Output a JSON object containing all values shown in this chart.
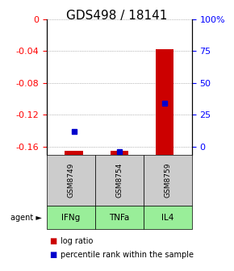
{
  "title": "GDS498 / 18141",
  "samples": [
    "GSM8749",
    "GSM8754",
    "GSM8759"
  ],
  "agents": [
    "IFNg",
    "TNFa",
    "IL4"
  ],
  "log_ratios": [
    -0.165,
    -0.165,
    -0.038
  ],
  "percentile_ranks": [
    17,
    2,
    38
  ],
  "ylim": [
    -0.17,
    0.0
  ],
  "y_ticks_left": [
    0,
    -0.04,
    -0.08,
    -0.12,
    -0.16
  ],
  "y_ticks_right_labels": [
    "100%",
    "75",
    "50",
    "25",
    "0"
  ],
  "y_ticks_right_vals": [
    0,
    -0.04,
    -0.08,
    -0.12,
    -0.16
  ],
  "bar_color": "#cc0000",
  "blue_color": "#0000cc",
  "agent_bg_color": "#99ee99",
  "sample_bg_color": "#cccccc",
  "bar_width": 0.4,
  "title_fontsize": 11,
  "tick_fontsize": 8,
  "label_fontsize": 8,
  "legend_fontsize": 7
}
